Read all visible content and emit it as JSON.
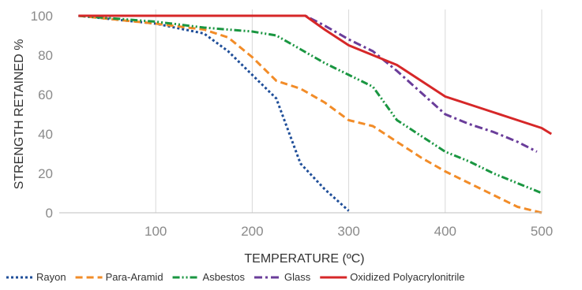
{
  "chart_data": {
    "type": "line",
    "xlabel": "TEMPERATURE (ºC)",
    "ylabel": "STRENGTH RETAINED %",
    "xlim": [
      0,
      500
    ],
    "ylim": [
      0,
      100
    ],
    "x_ticks": [
      100,
      200,
      300,
      400,
      500
    ],
    "y_ticks": [
      0,
      20,
      40,
      60,
      80,
      100
    ],
    "grid": "vertical",
    "legend_position": "bottom",
    "series": [
      {
        "name": "Rayon",
        "color": "#1f4e99",
        "dash": "dotted-dash",
        "points": [
          [
            20,
            100
          ],
          [
            100,
            96
          ],
          [
            150,
            91
          ],
          [
            175,
            82
          ],
          [
            200,
            70
          ],
          [
            225,
            58
          ],
          [
            250,
            25
          ],
          [
            275,
            12
          ],
          [
            300,
            1
          ]
        ]
      },
      {
        "name": "Para-Aramid",
        "color": "#f28c28",
        "dash": "dash",
        "points": [
          [
            20,
            100
          ],
          [
            100,
            96
          ],
          [
            150,
            93
          ],
          [
            175,
            89
          ],
          [
            200,
            79
          ],
          [
            225,
            67
          ],
          [
            250,
            63
          ],
          [
            275,
            56
          ],
          [
            300,
            47
          ],
          [
            325,
            44
          ],
          [
            350,
            36
          ],
          [
            375,
            28
          ],
          [
            400,
            21
          ],
          [
            425,
            15
          ],
          [
            450,
            9
          ],
          [
            475,
            3
          ],
          [
            500,
            0
          ]
        ]
      },
      {
        "name": "Asbestos",
        "color": "#1a9641",
        "dash": "dash-dot-dot",
        "points": [
          [
            20,
            100
          ],
          [
            100,
            97
          ],
          [
            150,
            94
          ],
          [
            200,
            92
          ],
          [
            225,
            90
          ],
          [
            250,
            83
          ],
          [
            275,
            76
          ],
          [
            300,
            70
          ],
          [
            325,
            64
          ],
          [
            350,
            47
          ],
          [
            375,
            39
          ],
          [
            400,
            31
          ],
          [
            425,
            26
          ],
          [
            450,
            20
          ],
          [
            475,
            15
          ],
          [
            500,
            10
          ]
        ]
      },
      {
        "name": "Glass",
        "color": "#6a3d9a",
        "dash": "dash-dot",
        "points": [
          [
            20,
            100
          ],
          [
            100,
            100
          ],
          [
            150,
            100
          ],
          [
            200,
            100
          ],
          [
            255,
            100
          ],
          [
            275,
            95
          ],
          [
            300,
            88
          ],
          [
            325,
            82
          ],
          [
            350,
            72
          ],
          [
            375,
            61
          ],
          [
            400,
            50
          ],
          [
            425,
            45
          ],
          [
            450,
            41
          ],
          [
            475,
            36
          ],
          [
            495,
            31
          ]
        ]
      },
      {
        "name": "Oxidized Polyacrylonitrile",
        "color": "#d62728",
        "dash": "solid",
        "points": [
          [
            20,
            100
          ],
          [
            100,
            100
          ],
          [
            150,
            100
          ],
          [
            200,
            100
          ],
          [
            255,
            100
          ],
          [
            275,
            93
          ],
          [
            300,
            85
          ],
          [
            325,
            80
          ],
          [
            350,
            75
          ],
          [
            375,
            67
          ],
          [
            400,
            59
          ],
          [
            425,
            55
          ],
          [
            450,
            51
          ],
          [
            475,
            47
          ],
          [
            500,
            43
          ],
          [
            510,
            40
          ]
        ]
      }
    ]
  }
}
